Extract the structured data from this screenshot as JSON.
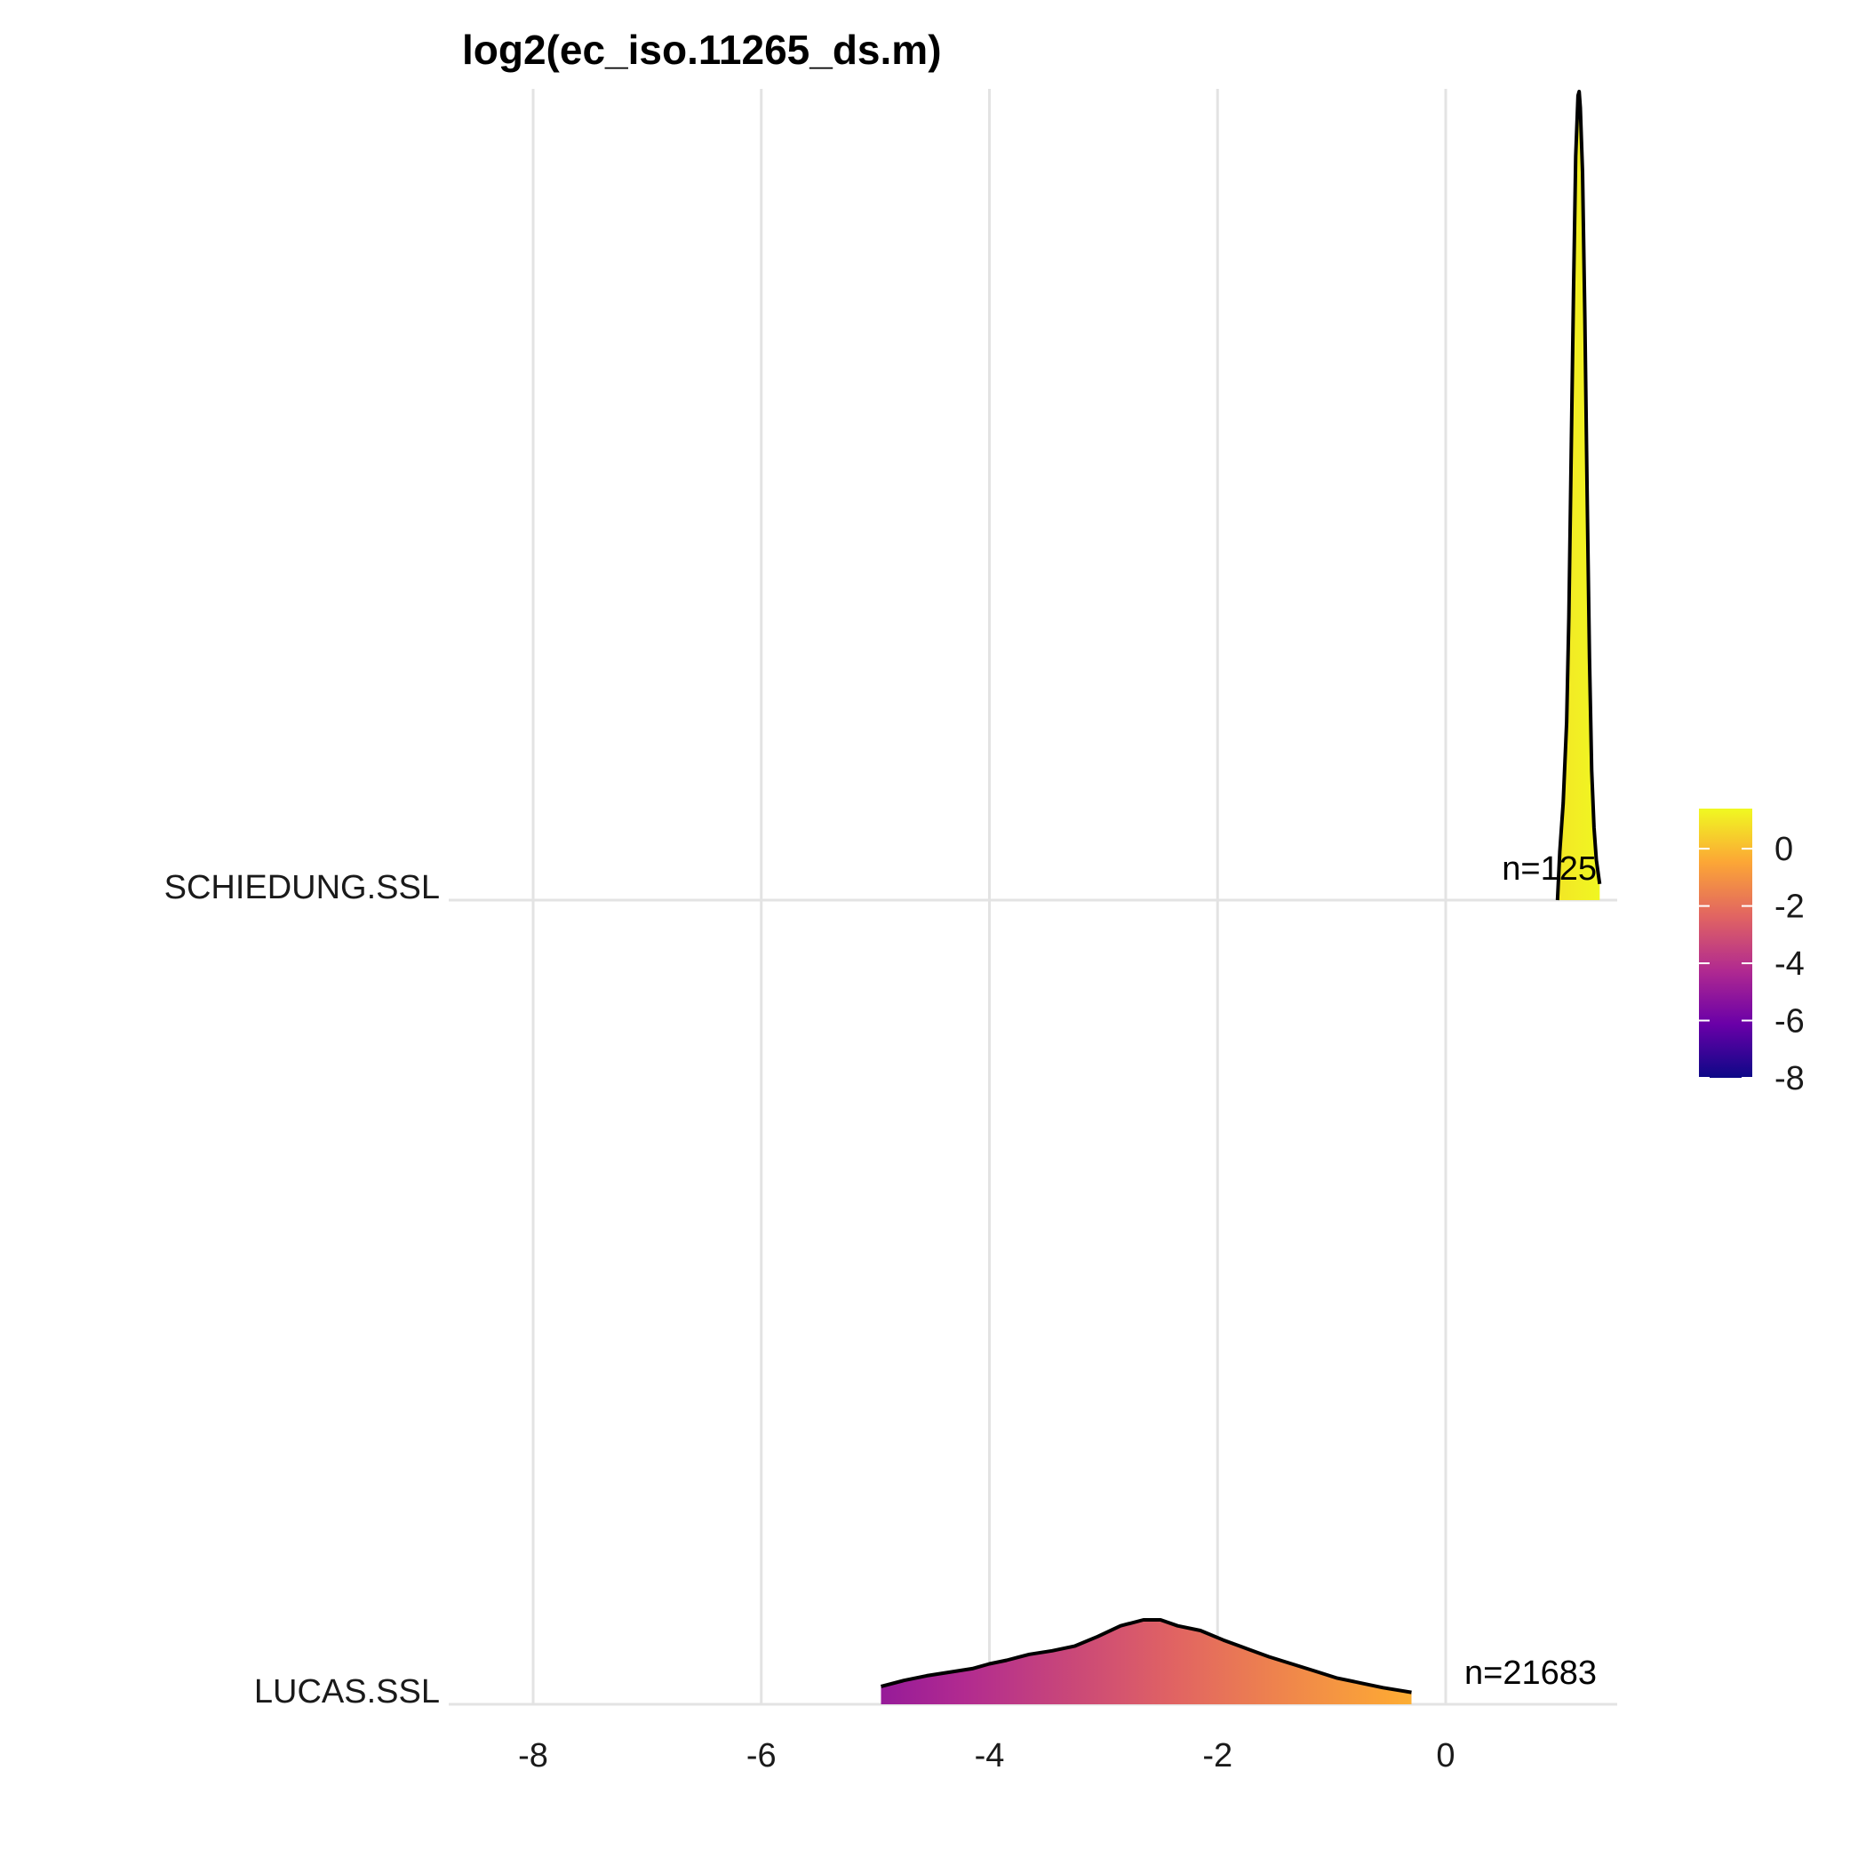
{
  "chart_data": {
    "type": "ridgeline",
    "title": "log2(ec_iso.11265_ds.m)",
    "xlabel": "",
    "ylabel": "",
    "xlim": [
      -9.0,
      1.5
    ],
    "x_ticks": [
      -8,
      -6,
      -4,
      -2,
      0
    ],
    "grid": true,
    "categories": [
      "SCHIEDUNG.SSL",
      "LUCAS.SSL"
    ],
    "series": [
      {
        "name": "SCHIEDUNG.SSL",
        "n_label": "n=125",
        "density": {
          "x": [
            0.98,
            1.0,
            1.03,
            1.06,
            1.08,
            1.1,
            1.12,
            1.14,
            1.16,
            1.17,
            1.18,
            1.2,
            1.22,
            1.24,
            1.26,
            1.28,
            1.3,
            1.32,
            1.34,
            1.35
          ],
          "y": [
            0.0,
            0.06,
            0.12,
            0.22,
            0.35,
            0.55,
            0.75,
            0.92,
            0.995,
            1.0,
            0.98,
            0.9,
            0.72,
            0.5,
            0.3,
            0.16,
            0.09,
            0.05,
            0.03,
            0.02
          ]
        }
      },
      {
        "name": "LUCAS.SSL",
        "n_label": "n=21683",
        "density": {
          "x": [
            -4.95,
            -4.75,
            -4.55,
            -4.35,
            -4.15,
            -4.0,
            -3.85,
            -3.65,
            -3.45,
            -3.25,
            -3.05,
            -2.85,
            -2.65,
            -2.5,
            -2.35,
            -2.15,
            -1.95,
            -1.75,
            -1.55,
            -1.35,
            -1.15,
            -0.95,
            -0.75,
            -0.55,
            -0.3
          ],
          "y": [
            0.015,
            0.02,
            0.024,
            0.027,
            0.03,
            0.034,
            0.037,
            0.042,
            0.045,
            0.049,
            0.057,
            0.066,
            0.071,
            0.071,
            0.066,
            0.062,
            0.054,
            0.047,
            0.04,
            0.034,
            0.028,
            0.022,
            0.018,
            0.014,
            0.01
          ]
        }
      }
    ],
    "colorbar": {
      "palette": "plasma",
      "range": [
        -8.0,
        1.4
      ],
      "ticks": [
        "0",
        "-2",
        "-4",
        "-6",
        "-8"
      ],
      "tick_values": [
        0,
        -2,
        -4,
        -6,
        -8
      ],
      "colors": [
        "#0d0887",
        "#6a00a8",
        "#b12a90",
        "#e16462",
        "#fca636",
        "#f0f921"
      ]
    }
  }
}
